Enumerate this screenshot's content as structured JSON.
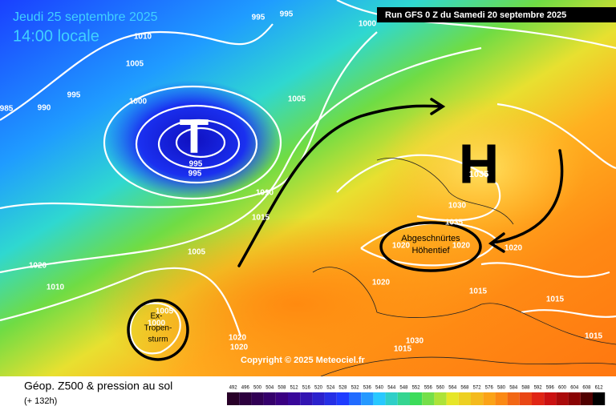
{
  "header": {
    "date": "Jeudi 25 septembre 2025",
    "time": "14:00 locale",
    "run": "Run GFS 0 Z du Samedi 20 septembre 2025"
  },
  "map": {
    "isobar_labels": [
      995,
      995,
      1000,
      1010,
      1005,
      995,
      985,
      990,
      1000,
      1005,
      995,
      995,
      1010,
      1015,
      1030,
      1035,
      1020,
      1020,
      1020,
      1005,
      1020,
      1010,
      1020,
      1015,
      1015,
      1005,
      1000,
      1020,
      1020,
      1030,
      1015,
      1015
    ],
    "low_symbol": "T",
    "high_symbol": "H",
    "high_value": 1035,
    "cutoff_low": [
      "Abgeschnürtes",
      "Höhentief"
    ],
    "ex_storm": [
      "Ex-",
      "Tropen-",
      "sturm"
    ],
    "copyright": "Copyright © 2025 Meteociel.fr"
  },
  "footer": {
    "title": "Géop. Z500 & pression au sol",
    "lead": "(+ 132h)",
    "scale_ticks": [
      492,
      496,
      500,
      504,
      508,
      512,
      516,
      520,
      524,
      528,
      532,
      536,
      540,
      544,
      548,
      552,
      556,
      560,
      564,
      568,
      572,
      576,
      580,
      584,
      588,
      592,
      596,
      600,
      604,
      608,
      612
    ]
  }
}
